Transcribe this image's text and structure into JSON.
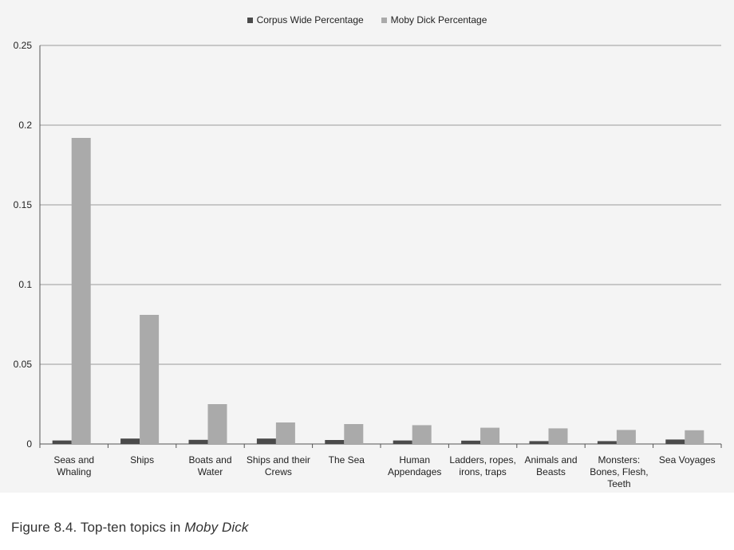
{
  "chart_data": {
    "type": "bar",
    "categories": [
      [
        "Seas and",
        "Whaling"
      ],
      [
        "Ships"
      ],
      [
        "Boats and",
        "Water"
      ],
      [
        "Ships and their",
        "Crews"
      ],
      [
        "The Sea"
      ],
      [
        "Human",
        "Appendages"
      ],
      [
        "Ladders, ropes,",
        "irons, traps"
      ],
      [
        "Animals and",
        "Beasts"
      ],
      [
        "Monsters:",
        "Bones, Flesh,",
        "Teeth"
      ],
      [
        "Sea Voyages"
      ]
    ],
    "series": [
      {
        "name": "Corpus Wide Percentage",
        "color": "#4a4a4a",
        "values": [
          0.0022,
          0.0034,
          0.0026,
          0.0034,
          0.0025,
          0.0022,
          0.0021,
          0.0018,
          0.0018,
          0.0028
        ]
      },
      {
        "name": "Moby Dick Percentage",
        "color": "#aaaaaa",
        "values": [
          0.192,
          0.081,
          0.025,
          0.0135,
          0.0125,
          0.0118,
          0.0102,
          0.0098,
          0.0088,
          0.0086
        ]
      }
    ],
    "ylim": [
      0,
      0.25
    ],
    "yticks": [
      "0",
      "0.05",
      "0.1",
      "0.15",
      "0.2",
      "0.25"
    ],
    "ytick_values": [
      0,
      0.05,
      0.1,
      0.15,
      0.2,
      0.25
    ],
    "grid": true,
    "legend_position": "top-center"
  },
  "caption": {
    "prefix": "Figure 8.4. Top-ten topics in ",
    "title": "Moby Dick"
  }
}
